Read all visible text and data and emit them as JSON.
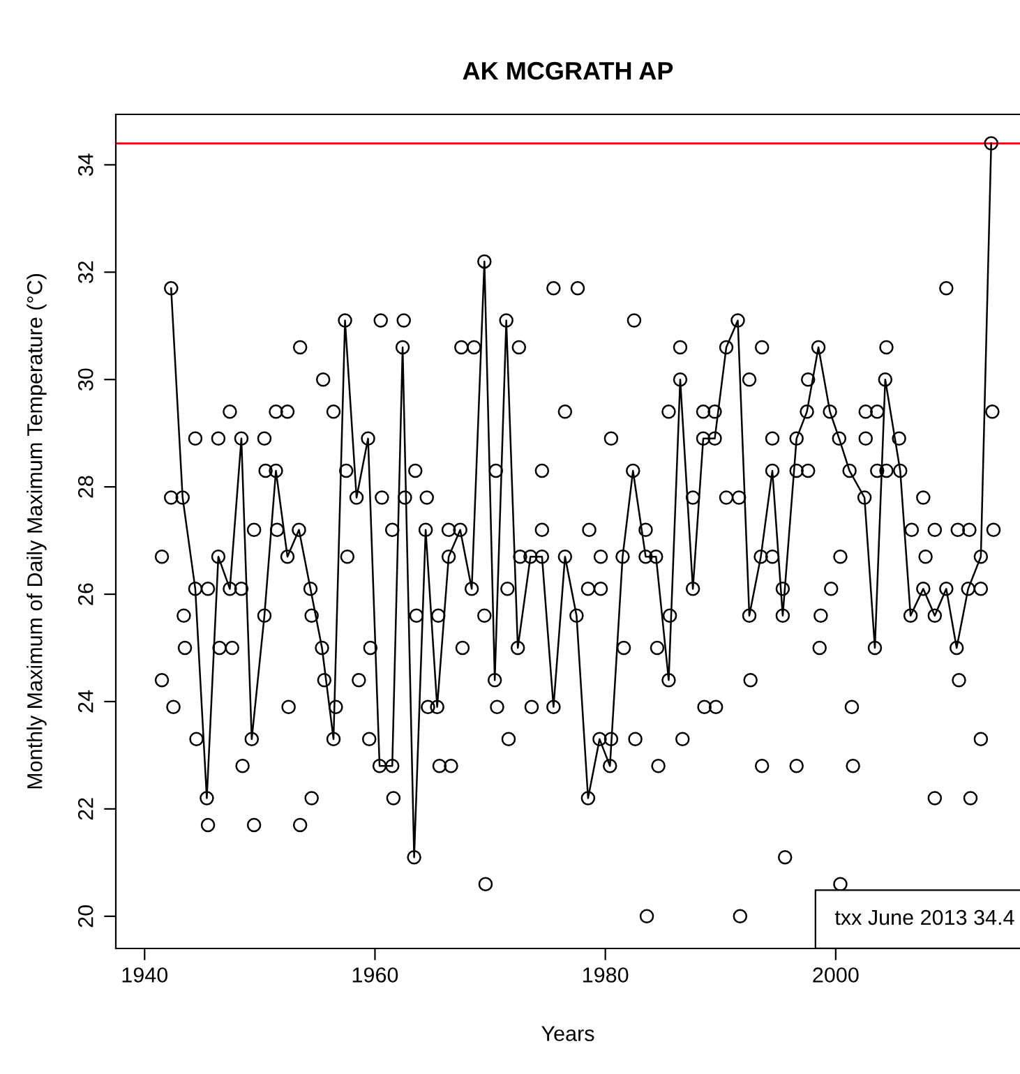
{
  "chart_data": {
    "type": "scatter",
    "title": "AK MCGRATH AP",
    "xlabel": "Years",
    "ylabel": "Monthly Maximum of Daily Maximum Temperature (°C)",
    "xlim": [
      1937.5,
      2016.0
    ],
    "ylim": [
      19.4,
      34.94
    ],
    "xticks": [
      1940,
      1960,
      1980,
      2000
    ],
    "yticks": [
      20,
      22,
      24,
      26,
      28,
      30,
      32,
      34
    ],
    "grid": false,
    "series": [
      {
        "color": "#000000",
        "marker": "circle",
        "x": [
          1941.5,
          1941.5,
          1942.3,
          1942.3,
          1942.5,
          1943.3,
          1943.4,
          1943.5,
          1944.4,
          1944.4,
          1944.5,
          1945.4,
          1945.5,
          1945.5,
          1946.4,
          1946.4,
          1946.5,
          1947.4,
          1947.4,
          1947.6,
          1948.4,
          1948.4,
          1948.5,
          1949.3,
          1949.5,
          1949.5,
          1950.4,
          1950.4,
          1950.5,
          1951.4,
          1951.4,
          1951.5,
          1952.4,
          1952.4,
          1952.5,
          1953.4,
          1953.5,
          1953.5,
          1954.4,
          1954.5,
          1954.5,
          1955.4,
          1955.5,
          1955.6,
          1956.4,
          1956.4,
          1956.6,
          1957.4,
          1957.5,
          1957.6,
          1958.4,
          1958.6,
          1959.4,
          1959.5,
          1959.6,
          1960.4,
          1960.5,
          1960.6,
          1961.5,
          1961.5,
          1961.6,
          1962.4,
          1962.5,
          1962.6,
          1963.4,
          1963.5,
          1963.6,
          1964.4,
          1964.5,
          1964.6,
          1965.4,
          1965.5,
          1965.6,
          1966.4,
          1966.4,
          1966.6,
          1967.4,
          1967.5,
          1967.6,
          1968.4,
          1968.6,
          1969.5,
          1969.5,
          1969.6,
          1970.4,
          1970.5,
          1970.6,
          1971.4,
          1971.5,
          1971.6,
          1972.4,
          1972.5,
          1972.6,
          1973.5,
          1973.6,
          1974.5,
          1974.5,
          1974.5,
          1975.5,
          1975.5,
          1976.5,
          1976.5,
          1977.5,
          1977.6,
          1978.5,
          1978.5,
          1978.6,
          1979.5,
          1979.6,
          1979.6,
          1980.4,
          1980.5,
          1980.5,
          1981.5,
          1981.6,
          1982.4,
          1982.5,
          1982.6,
          1983.5,
          1983.5,
          1983.6,
          1984.4,
          1984.5,
          1984.6,
          1985.5,
          1985.5,
          1985.6,
          1986.5,
          1986.5,
          1986.7,
          1987.6,
          1987.6,
          1988.5,
          1988.5,
          1988.6,
          1989.5,
          1989.5,
          1989.6,
          1990.5,
          1990.5,
          1991.5,
          1991.6,
          1991.7,
          1992.5,
          1992.5,
          1992.6,
          1993.5,
          1993.6,
          1993.6,
          1994.5,
          1994.5,
          1994.5,
          1995.4,
          1995.4,
          1995.6,
          1996.6,
          1996.6,
          1996.6,
          1997.5,
          1997.6,
          1997.6,
          1998.5,
          1998.6,
          1998.7,
          1999.5,
          1999.6,
          2000.3,
          2000.4,
          2000.4,
          2001.2,
          2001.4,
          2001.5,
          2002.5,
          2002.6,
          2002.6,
          2003.4,
          2003.6,
          2003.6,
          2004.3,
          2004.4,
          2004.4,
          2005.5,
          2005.6,
          2006.5,
          2006.6,
          2007.6,
          2007.6,
          2007.8,
          2008.6,
          2008.6,
          2008.6,
          2009.6,
          2009.6,
          2010.5,
          2010.6,
          2010.7,
          2011.5,
          2011.6,
          2011.7,
          2012.6,
          2012.6,
          2012.6,
          2013.5,
          2013.6,
          2013.7
        ],
        "values": [
          26.7,
          24.4,
          31.7,
          27.8,
          23.9,
          27.8,
          25.6,
          25.0,
          26.1,
          28.9,
          23.3,
          22.2,
          26.1,
          21.7,
          26.7,
          28.9,
          25.0,
          26.1,
          29.4,
          25.0,
          28.9,
          26.1,
          22.8,
          23.3,
          27.2,
          21.7,
          25.6,
          28.9,
          28.3,
          28.3,
          29.4,
          27.2,
          26.7,
          29.4,
          23.9,
          27.2,
          30.6,
          21.7,
          26.1,
          25.6,
          22.2,
          25.0,
          30.0,
          24.4,
          23.3,
          29.4,
          23.9,
          31.1,
          28.3,
          26.7,
          27.8,
          24.4,
          28.9,
          23.3,
          25.0,
          22.8,
          31.1,
          27.8,
          22.8,
          27.2,
          22.2,
          30.6,
          31.1,
          27.8,
          21.1,
          28.3,
          25.6,
          27.2,
          27.8,
          23.9,
          23.9,
          25.6,
          22.8,
          26.7,
          27.2,
          22.8,
          27.2,
          30.6,
          25.0,
          26.1,
          30.6,
          32.2,
          25.6,
          20.6,
          24.4,
          28.3,
          23.9,
          31.1,
          26.1,
          23.3,
          25.0,
          30.6,
          26.7,
          26.7,
          23.9,
          26.7,
          28.3,
          27.2,
          23.9,
          31.7,
          26.7,
          29.4,
          25.6,
          31.7,
          22.2,
          26.1,
          27.2,
          23.3,
          26.1,
          26.7,
          22.8,
          23.3,
          28.9,
          26.7,
          25.0,
          28.3,
          31.1,
          23.3,
          26.7,
          27.2,
          20.0,
          26.7,
          25.0,
          22.8,
          24.4,
          29.4,
          25.6,
          30.0,
          30.6,
          23.3,
          26.1,
          27.8,
          28.9,
          29.4,
          23.9,
          28.9,
          29.4,
          23.9,
          30.6,
          27.8,
          31.1,
          27.8,
          20.0,
          25.6,
          30.0,
          24.4,
          26.7,
          30.6,
          22.8,
          28.3,
          28.9,
          26.7,
          25.6,
          26.1,
          21.1,
          28.9,
          28.3,
          22.8,
          29.4,
          30.0,
          28.3,
          30.6,
          25.0,
          25.6,
          29.4,
          26.1,
          28.9,
          26.7,
          20.6,
          28.3,
          23.9,
          22.8,
          27.8,
          29.4,
          28.9,
          25.0,
          28.3,
          29.4,
          30.0,
          28.3,
          30.6,
          28.9,
          28.3,
          25.6,
          27.2,
          26.1,
          27.8,
          26.7,
          25.6,
          27.2,
          22.2,
          26.1,
          31.7,
          25.0,
          27.2,
          24.4,
          26.1,
          27.2,
          22.2,
          26.7,
          23.3,
          26.1,
          34.4,
          29.4,
          27.2
        ]
      },
      {
        "type": "line",
        "color": "#000000",
        "marker": "none",
        "line_style": "solid",
        "x": [
          1942.3,
          1943.3,
          1944.4,
          1945.4,
          1946.4,
          1947.4,
          1948.4,
          1949.3,
          1950.4,
          1951.4,
          1952.4,
          1953.4,
          1954.4,
          1955.4,
          1956.4,
          1957.4,
          1958.4,
          1959.4,
          1960.4,
          1961.5,
          1962.4,
          1963.4,
          1964.4,
          1965.4,
          1966.4,
          1967.4,
          1968.4,
          1969.5,
          1970.4,
          1971.4,
          1972.4,
          1973.5,
          1974.5,
          1975.5,
          1976.5,
          1977.5,
          1978.5,
          1979.5,
          1980.4,
          1981.5,
          1982.4,
          1983.5,
          1984.4,
          1985.5,
          1986.5,
          1987.6,
          1988.5,
          1989.5,
          1990.5,
          1991.5,
          1992.5,
          1993.5,
          1994.5,
          1995.4,
          1996.6,
          1997.5,
          1998.5,
          1999.5,
          2000.3,
          2001.2,
          2002.5,
          2003.4,
          2004.3,
          2005.6,
          2006.5,
          2007.6,
          2008.6,
          2009.6,
          2010.5,
          2011.5,
          2012.6,
          2013.5
        ],
        "values": [
          31.7,
          27.8,
          26.1,
          22.2,
          26.7,
          26.1,
          28.9,
          23.3,
          25.6,
          28.3,
          26.7,
          27.2,
          26.1,
          25.0,
          23.3,
          31.1,
          27.8,
          28.9,
          22.8,
          22.8,
          30.6,
          21.1,
          27.2,
          23.9,
          26.7,
          27.2,
          26.1,
          32.2,
          24.4,
          31.1,
          25.0,
          26.7,
          26.7,
          23.9,
          26.7,
          25.6,
          22.2,
          23.3,
          22.8,
          26.7,
          28.3,
          26.7,
          26.7,
          24.4,
          30.0,
          26.1,
          28.9,
          28.9,
          30.6,
          31.1,
          25.6,
          26.7,
          28.3,
          25.6,
          28.9,
          29.4,
          30.6,
          29.4,
          28.9,
          28.3,
          27.8,
          25.0,
          30.0,
          28.3,
          25.6,
          26.1,
          25.6,
          26.1,
          25.0,
          26.1,
          26.7,
          34.4
        ]
      }
    ],
    "ref_lines": [
      {
        "axis": "y",
        "value": 34.4,
        "color": "#ff0000"
      }
    ],
    "annotations": [
      "txx June 2013 34.4"
    ]
  }
}
